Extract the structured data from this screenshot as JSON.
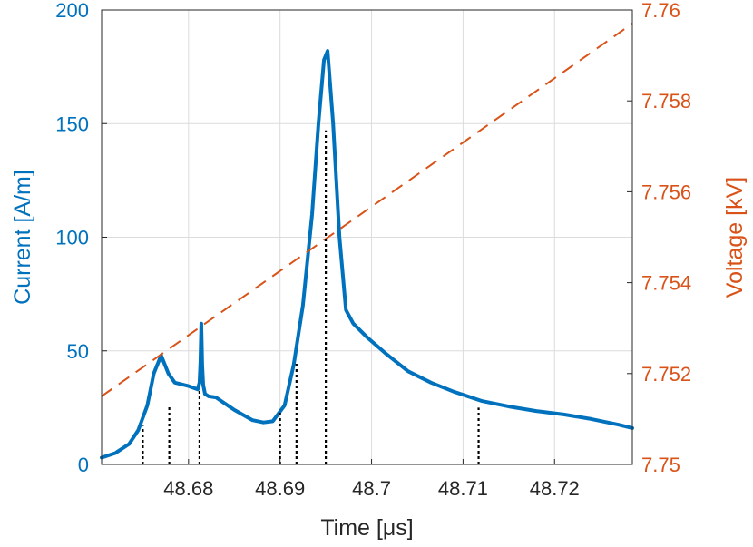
{
  "chart_data": {
    "type": "line",
    "title": "",
    "xlabel": "Time [μs]",
    "ylabel": "Current [A/m]",
    "ylabel_right": "Voltage [kV]",
    "xlim": [
      48.6705,
      48.7285
    ],
    "ylim": [
      0,
      200
    ],
    "ylim_right": [
      7.75,
      7.76
    ],
    "xticks": [
      48.68,
      48.69,
      48.7,
      48.71,
      48.72
    ],
    "xtick_labels": [
      "48.68",
      "48.69",
      "48.7",
      "48.71",
      "48.72"
    ],
    "yticks": [
      0,
      50,
      100,
      150,
      200
    ],
    "ytick_labels": [
      "0",
      "50",
      "100",
      "150",
      "200"
    ],
    "yticks_right": [
      7.75,
      7.752,
      7.754,
      7.756,
      7.758,
      7.76
    ],
    "ytick_right_labels": [
      "7.75",
      "7.752",
      "7.754",
      "7.756",
      "7.758",
      "7.76"
    ],
    "grid": true,
    "colors": {
      "current": "#0072BD",
      "voltage": "#D95319",
      "markers": "#000000",
      "grid": "#DCDCDC",
      "axes": "#262626"
    },
    "series": [
      {
        "axis": "left",
        "style": "solid",
        "x": [
          48.6705,
          48.672,
          48.6735,
          48.6745,
          48.6755,
          48.6762,
          48.677,
          48.6778,
          48.6785,
          48.68,
          48.681,
          48.6812,
          48.6813,
          48.6814,
          48.6815,
          48.6816,
          48.6818,
          48.6822,
          48.683,
          48.685,
          48.687,
          48.6882,
          48.6892,
          48.6905,
          48.6915,
          48.6925,
          48.6935,
          48.6942,
          48.6948,
          48.6952,
          48.6958,
          48.6965,
          48.6972,
          48.698,
          48.6995,
          48.7015,
          48.704,
          48.7065,
          48.709,
          48.712,
          48.715,
          48.718,
          48.721,
          48.724,
          48.727,
          48.7285
        ],
        "y": [
          3,
          5,
          9,
          15,
          26,
          40,
          48,
          40,
          36,
          34.5,
          33,
          36,
          45,
          62,
          44,
          35,
          31,
          30,
          29.5,
          24,
          19.5,
          18.5,
          19,
          26,
          44,
          70,
          110,
          150,
          178,
          182,
          150,
          100,
          68,
          62,
          56,
          49,
          41,
          36,
          32,
          28,
          25.5,
          23.5,
          22,
          20,
          17.5,
          16
        ]
      },
      {
        "axis": "right",
        "style": "dashed",
        "x": [
          48.6705,
          48.7285
        ],
        "y": [
          7.7515,
          7.7597
        ]
      }
    ],
    "markers": {
      "x": [
        48.675,
        48.6779,
        48.6812,
        48.69,
        48.6918,
        48.695,
        48.7117
      ],
      "y": [
        17,
        26,
        33,
        24,
        45,
        147,
        25
      ]
    }
  }
}
